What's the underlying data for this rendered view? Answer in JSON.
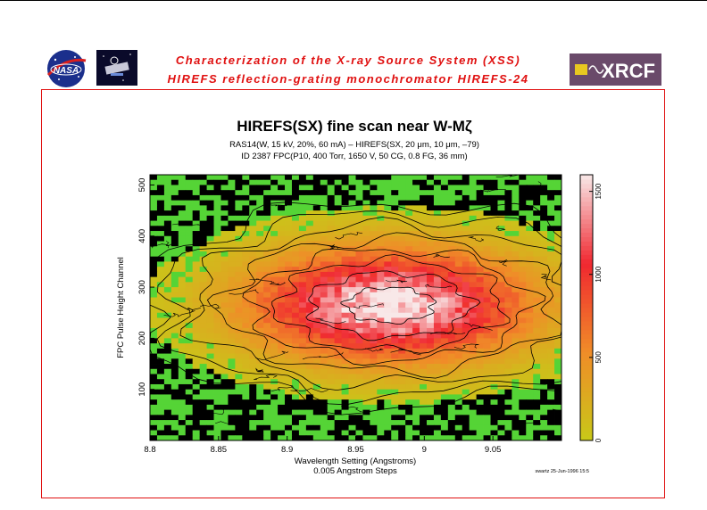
{
  "header": {
    "title_line1": "Characterization of the X-ray Source System (XSS)",
    "title_line2": "HIREFS reflection-grating monochromator   HIREFS-24",
    "logo_left": "NASA",
    "logo_right": "XRCF",
    "accent_color": "#e01010"
  },
  "chart_data": {
    "type": "heatmap",
    "title": "HIREFS(SX) fine scan near W-Mζ",
    "subtitle1": "RAS14(W, 15 kV, 20%, 60 mA) – HIREFS(SX, 20 μm, 10 μm, –79)",
    "subtitle2": "ID 2387 FPC(P10, 400 Torr, 1650 V, 50 CG, 0.8 FG, 36 mm)",
    "xlabel": "Wavelength Setting (Angstroms)",
    "xlabel2": "0.005 Angstrom Steps",
    "ylabel": "FPC Pulse Height Channel",
    "footer": "swartz 25-Jun-1996 15:5",
    "xlim": [
      8.8,
      9.1
    ],
    "ylim": [
      0,
      520
    ],
    "xticks": [
      "8.8",
      "8.85",
      "8.9",
      "8.95",
      "9",
      "9.05"
    ],
    "xtick_values": [
      8.8,
      8.85,
      8.9,
      8.95,
      9.0,
      9.05
    ],
    "yticks": [
      "100",
      "200",
      "300",
      "400",
      "500"
    ],
    "ytick_values": [
      100,
      200,
      300,
      400,
      500
    ],
    "colorbar": {
      "range": [
        0,
        1600
      ],
      "ticks": [
        "0",
        "500",
        "1000",
        "1500"
      ],
      "tick_values": [
        0,
        500,
        1000,
        1500
      ],
      "colors": [
        "#c8c818",
        "#f08c28",
        "#f02830",
        "#f8e8e8"
      ]
    },
    "peak": {
      "x": 8.975,
      "y": 265,
      "max_counts": 1600
    },
    "low_color": "#55d436",
    "dropout_color": "#000000"
  }
}
